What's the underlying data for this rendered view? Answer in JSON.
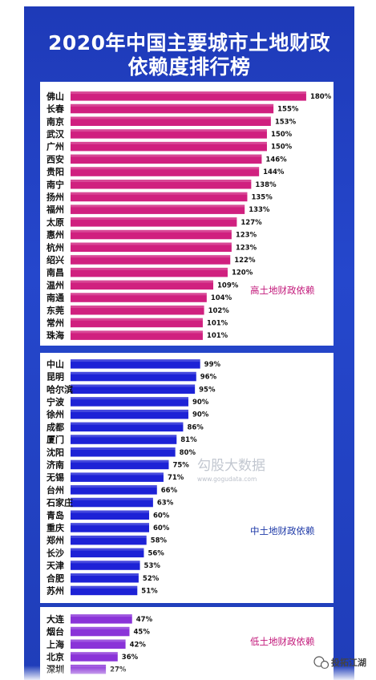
{
  "title": {
    "line1": "2020年中国主要城市土地财政",
    "line2": "依赖度排行榜"
  },
  "colors": {
    "background": "#2547cc",
    "high": "#d0207f",
    "mid": "#1d22d6",
    "low": "#8a33d8",
    "high_label": "#c2187a",
    "mid_label": "#1f3aa8",
    "low_label": "#c2187a"
  },
  "watermark": {
    "brand": "勾股大数据",
    "url": "www.gogudata.com",
    "account": "投拓江湖"
  },
  "chart_data": {
    "type": "bar",
    "orientation": "horizontal",
    "unit": "%",
    "groups": [
      {
        "label": "高土地财政依赖",
        "color": "#d0207f",
        "categories": [
          "佛山",
          "长春",
          "南京",
          "武汉",
          "广州",
          "西安",
          "贵阳",
          "南宁",
          "扬州",
          "福州",
          "太原",
          "惠州",
          "杭州",
          "绍兴",
          "南昌",
          "温州",
          "南通",
          "东莞",
          "常州",
          "珠海"
        ],
        "values": [
          180,
          155,
          153,
          150,
          150,
          146,
          144,
          138,
          135,
          133,
          127,
          123,
          123,
          122,
          120,
          109,
          104,
          102,
          101,
          101
        ]
      },
      {
        "label": "中土地财政依赖",
        "color": "#1d22d6",
        "categories": [
          "中山",
          "昆明",
          "哈尔滨",
          "宁波",
          "徐州",
          "成都",
          "厦门",
          "沈阳",
          "济南",
          "无锡",
          "台州",
          "石家庄",
          "青岛",
          "重庆",
          "郑州",
          "长沙",
          "天津",
          "合肥",
          "苏州"
        ],
        "values": [
          99,
          96,
          95,
          90,
          90,
          86,
          81,
          80,
          75,
          71,
          66,
          63,
          60,
          60,
          58,
          56,
          53,
          52,
          51
        ]
      },
      {
        "label": "低土地财政依赖",
        "color": "#8a33d8",
        "categories": [
          "大连",
          "烟台",
          "上海",
          "北京",
          "深圳"
        ],
        "values": [
          47,
          45,
          42,
          36,
          27
        ]
      }
    ]
  }
}
